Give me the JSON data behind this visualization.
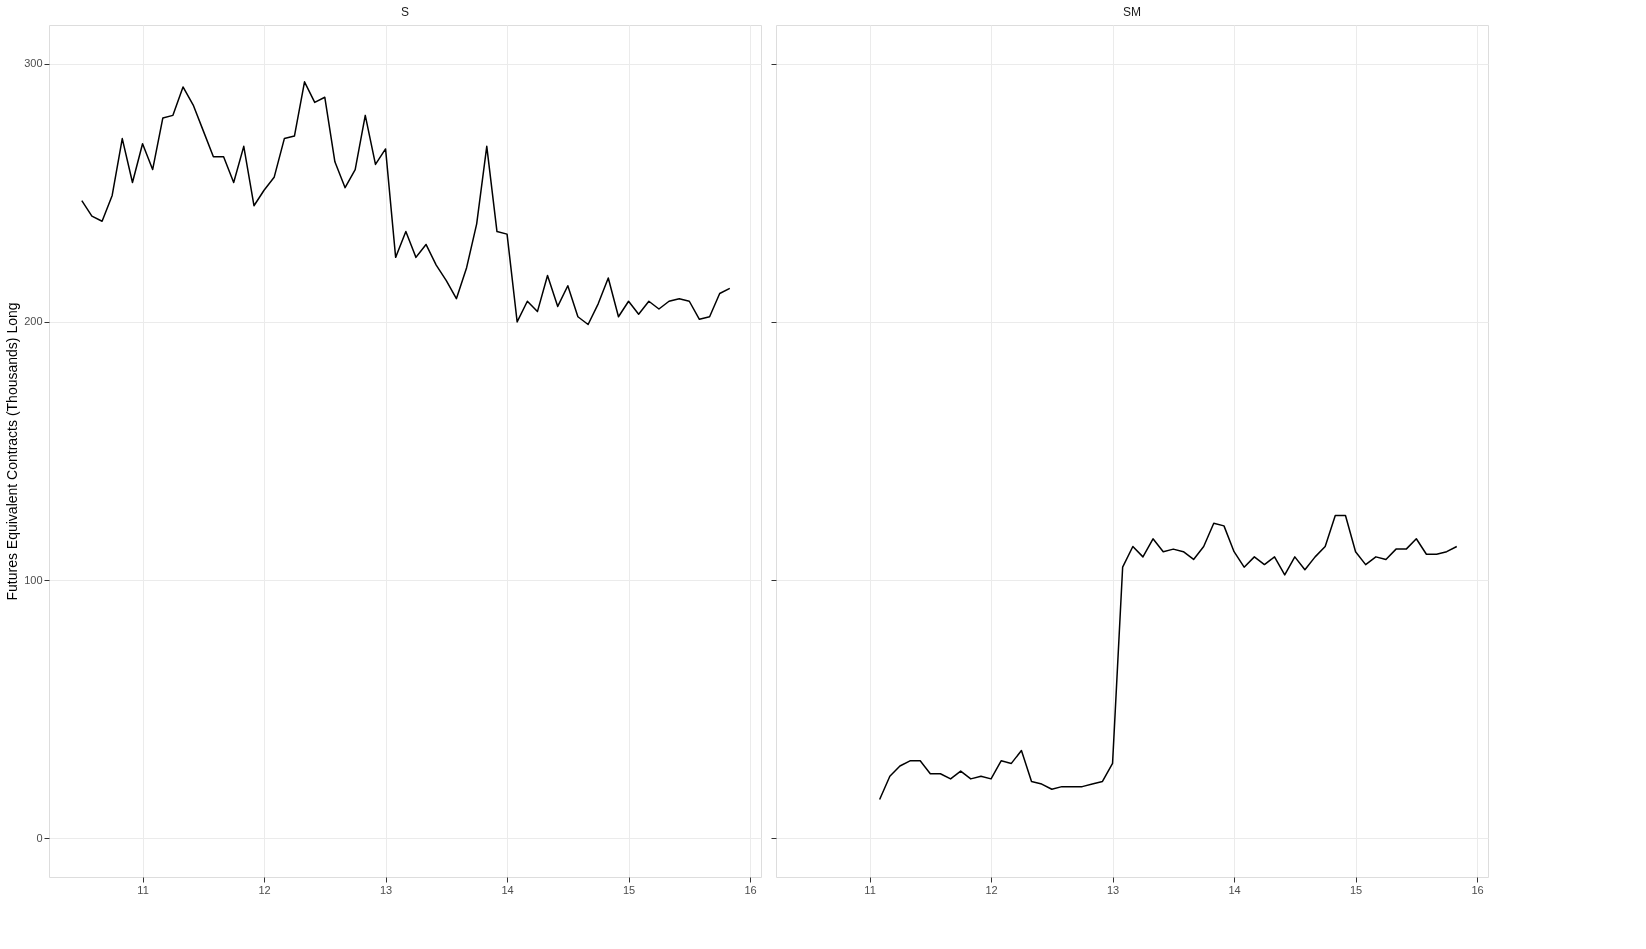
{
  "chart_data": [
    {
      "type": "line",
      "title": "S",
      "ylabel": "Futures Equivalent Contracts (Thousands) Long",
      "x": [
        10.5,
        10.583,
        10.667,
        10.75,
        10.833,
        10.917,
        11.0,
        11.083,
        11.167,
        11.25,
        11.333,
        11.417,
        11.5,
        11.583,
        11.667,
        11.75,
        11.833,
        11.917,
        12.0,
        12.083,
        12.167,
        12.25,
        12.333,
        12.417,
        12.5,
        12.583,
        12.667,
        12.75,
        12.833,
        12.917,
        13.0,
        13.083,
        13.167,
        13.25,
        13.333,
        13.417,
        13.5,
        13.583,
        13.667,
        13.75,
        13.833,
        13.917,
        14.0,
        14.083,
        14.167,
        14.25,
        14.333,
        14.417,
        14.5,
        14.583,
        14.667,
        14.75,
        14.833,
        14.917,
        15.0,
        15.083,
        15.167,
        15.25,
        15.333,
        15.417,
        15.5,
        15.583,
        15.667,
        15.75,
        15.833
      ],
      "series": [
        {
          "color": "#000000",
          "values": [
            247,
            241,
            239,
            249,
            271,
            254,
            269,
            259,
            279,
            280,
            291,
            284,
            274,
            264,
            264,
            254,
            268,
            245,
            251,
            256,
            271,
            272,
            293,
            285,
            287,
            262,
            252,
            259,
            280,
            261,
            267,
            225,
            235,
            225,
            230,
            222,
            216,
            209,
            221,
            238,
            268,
            235,
            234,
            200,
            208,
            204,
            218,
            206,
            214,
            202,
            199,
            207,
            217,
            202,
            208,
            203,
            208,
            205,
            208,
            209,
            208,
            201,
            202,
            211,
            213
          ]
        }
      ],
      "xlim": [
        10.23,
        16.09
      ],
      "ylim": [
        -15,
        315
      ],
      "xticks": [
        11,
        12,
        13,
        14,
        15,
        16
      ],
      "yticks": [
        0,
        100,
        200,
        300
      ],
      "grid": true,
      "line_style": "solid"
    },
    {
      "type": "line",
      "title": "SM",
      "x": [
        11.083,
        11.167,
        11.25,
        11.333,
        11.417,
        11.5,
        11.583,
        11.667,
        11.75,
        11.833,
        11.917,
        12.0,
        12.083,
        12.167,
        12.25,
        12.333,
        12.417,
        12.5,
        12.583,
        12.667,
        12.75,
        12.833,
        12.917,
        13.0,
        13.083,
        13.167,
        13.25,
        13.333,
        13.417,
        13.5,
        13.583,
        13.667,
        13.75,
        13.833,
        13.917,
        14.0,
        14.083,
        14.167,
        14.25,
        14.333,
        14.417,
        14.5,
        14.583,
        14.667,
        14.75,
        14.833,
        14.917,
        15.0,
        15.083,
        15.167,
        15.25,
        15.333,
        15.417,
        15.5,
        15.583,
        15.667,
        15.75,
        15.833
      ],
      "series": [
        {
          "color": "#000000",
          "values": [
            15,
            24,
            28,
            30,
            30,
            25,
            25,
            23,
            26,
            23,
            24,
            23,
            30,
            29,
            34,
            22,
            21,
            19,
            20,
            20,
            20,
            21,
            22,
            29,
            105,
            113,
            109,
            116,
            111,
            112,
            111,
            108,
            113,
            122,
            121,
            111,
            105,
            109,
            106,
            109,
            102,
            109,
            104,
            109,
            113,
            125,
            125,
            111,
            106,
            109,
            108,
            112,
            112,
            116,
            110,
            110,
            111,
            113
          ]
        }
      ],
      "xlim": [
        10.23,
        16.09
      ],
      "ylim": [
        -15,
        315
      ],
      "xticks": [
        11,
        12,
        13,
        14,
        15,
        16
      ],
      "yticks": [
        0,
        100,
        200,
        300
      ],
      "grid": true,
      "line_style": "solid",
      "tick_labels": "x"
    }
  ]
}
